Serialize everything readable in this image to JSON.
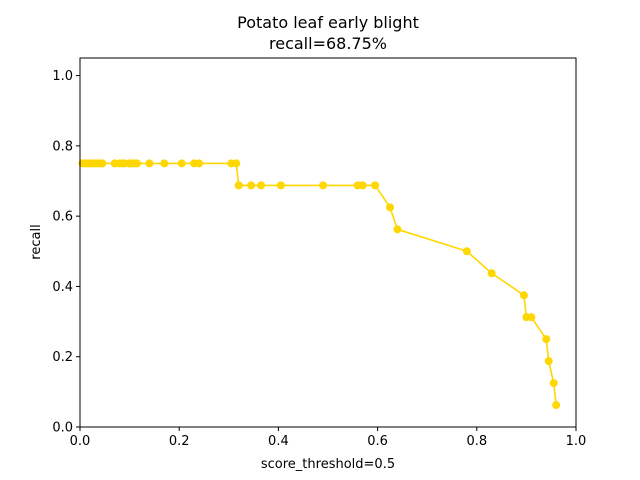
{
  "chart_data": {
    "type": "line",
    "title": "Potato leaf early blight",
    "subtitle": "recall=68.75%",
    "xlabel": "score_threshold=0.5",
    "ylabel": "recall",
    "xlim": [
      0,
      1
    ],
    "ylim": [
      0,
      1.05
    ],
    "grid": false,
    "legend": "none",
    "x_ticks": [
      "0.0",
      "0.2",
      "0.4",
      "0.6",
      "0.8",
      "1.0"
    ],
    "y_ticks": [
      "0.0",
      "0.2",
      "0.4",
      "0.6",
      "0.8",
      "1.0"
    ],
    "series": [
      {
        "color": "#ffd700",
        "x": [
          0.005,
          0.01,
          0.015,
          0.02,
          0.025,
          0.03,
          0.035,
          0.04,
          0.045,
          0.07,
          0.08,
          0.085,
          0.09,
          0.1,
          0.105,
          0.11,
          0.115,
          0.14,
          0.17,
          0.205,
          0.23,
          0.24,
          0.305,
          0.315,
          0.32,
          0.345,
          0.365,
          0.405,
          0.49,
          0.56,
          0.57,
          0.595,
          0.625,
          0.64,
          0.78,
          0.83,
          0.895,
          0.9,
          0.91,
          0.94,
          0.945,
          0.955,
          0.96
        ],
        "y": [
          0.75,
          0.75,
          0.75,
          0.75,
          0.75,
          0.75,
          0.75,
          0.75,
          0.75,
          0.75,
          0.75,
          0.75,
          0.75,
          0.75,
          0.75,
          0.75,
          0.75,
          0.75,
          0.75,
          0.75,
          0.75,
          0.75,
          0.75,
          0.75,
          0.6875,
          0.6875,
          0.6875,
          0.6875,
          0.6875,
          0.6875,
          0.6875,
          0.6875,
          0.625,
          0.5625,
          0.5,
          0.4375,
          0.375,
          0.3125,
          0.3125,
          0.25,
          0.1875,
          0.125,
          0.0625
        ]
      }
    ]
  }
}
